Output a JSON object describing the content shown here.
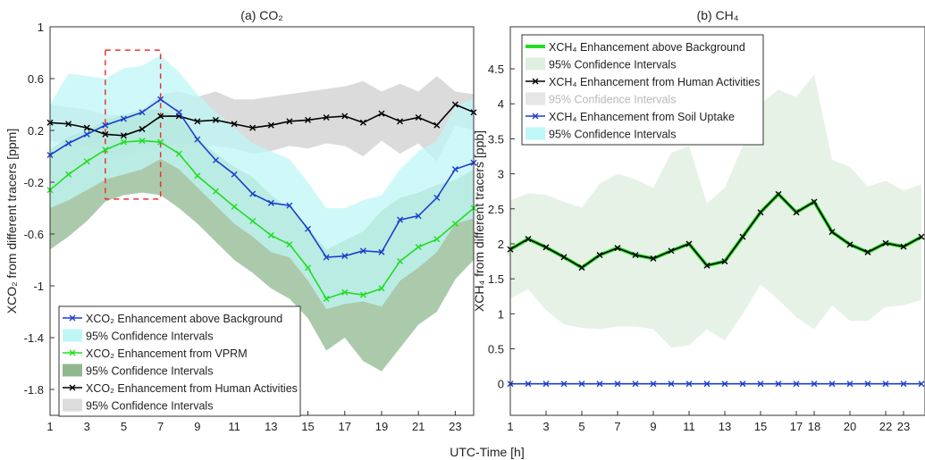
{
  "xlabel": "UTC-Time [h]",
  "chart_data": [
    {
      "type": "line",
      "title": "(a) CO₂",
      "ylabel": "XCO₂ from different tracers [ppm]",
      "xlim": [
        1,
        24
      ],
      "ylim": [
        -2.0,
        1.0
      ],
      "yticks": [
        1,
        0.6,
        0.2,
        -0.2,
        -0.6,
        -1,
        -1.4,
        -1.8
      ],
      "ytick_labels": [
        "1",
        "0.6",
        "0.2",
        "-0.2",
        "-0.6",
        "-1",
        "-1.4",
        "-1.8"
      ],
      "xticks": [
        1,
        3,
        5,
        7,
        9,
        11,
        13,
        15,
        17,
        19,
        21,
        23
      ],
      "xtick_labels": [
        "1",
        "3",
        "5",
        "7",
        "9",
        "11",
        "13",
        "15",
        "17",
        "19",
        "21",
        "23"
      ],
      "legend_position": "bottom-left",
      "highlight_box": {
        "x": [
          4,
          7
        ],
        "y": [
          -0.33,
          0.82
        ]
      },
      "x": [
        1,
        2,
        3,
        4,
        5,
        6,
        7,
        8,
        9,
        10,
        11,
        12,
        13,
        14,
        15,
        16,
        17,
        18,
        19,
        20,
        21,
        22,
        23,
        24
      ],
      "series": [
        {
          "name": "XCO₂ Enhancement from Human Activities",
          "color": "#000000",
          "ci_label": "95% Confidence Intervals",
          "ci_color": "#cfcfcf",
          "values": [
            0.26,
            0.25,
            0.22,
            0.17,
            0.16,
            0.21,
            0.31,
            0.31,
            0.27,
            0.28,
            0.25,
            0.22,
            0.24,
            0.27,
            0.28,
            0.3,
            0.31,
            0.26,
            0.33,
            0.27,
            0.3,
            0.24,
            0.4,
            0.34
          ],
          "ci_upper": [
            0.4,
            0.38,
            0.36,
            0.32,
            0.32,
            0.36,
            0.48,
            0.5,
            0.46,
            0.5,
            0.44,
            0.44,
            0.46,
            0.48,
            0.5,
            0.52,
            0.54,
            0.58,
            0.5,
            0.56,
            0.5,
            0.62,
            0.5,
            0.48
          ],
          "ci_lower": [
            0.12,
            0.1,
            0.08,
            0.02,
            0.0,
            0.06,
            0.1,
            0.1,
            0.08,
            0.08,
            0.06,
            0.02,
            0.04,
            0.08,
            0.06,
            0.1,
            0.08,
            0.0,
            0.12,
            0.02,
            0.1,
            -0.04,
            0.24,
            0.2
          ]
        },
        {
          "name": "XCO₂ Enhancement from VPRM",
          "color": "#22dd22",
          "ci_label": "95% Confidence Intervals",
          "ci_color": "#8fb88f",
          "values": [
            -0.26,
            -0.14,
            -0.04,
            0.05,
            0.11,
            0.12,
            0.11,
            0.02,
            -0.15,
            -0.27,
            -0.39,
            -0.5,
            -0.61,
            -0.68,
            -0.86,
            -1.1,
            -1.05,
            -1.07,
            -1.02,
            -0.81,
            -0.7,
            -0.64,
            -0.52,
            -0.4
          ],
          "ci_upper": [
            0.05,
            0.15,
            0.2,
            0.28,
            0.32,
            0.36,
            0.36,
            0.3,
            0.14,
            0.02,
            -0.08,
            -0.16,
            -0.3,
            -0.4,
            -0.55,
            -0.72,
            -0.65,
            -0.58,
            -0.42,
            -0.32,
            -0.28,
            -0.22,
            -0.18,
            -0.1
          ],
          "ci_lower": [
            -0.72,
            -0.62,
            -0.5,
            -0.35,
            -0.3,
            -0.28,
            -0.3,
            -0.4,
            -0.52,
            -0.66,
            -0.8,
            -0.9,
            -1.02,
            -1.1,
            -1.25,
            -1.5,
            -1.4,
            -1.58,
            -1.66,
            -1.48,
            -1.3,
            -1.2,
            -0.95,
            -0.8
          ]
        },
        {
          "name": "XCO₂ Enhancement above Background",
          "color": "#1a3fcc",
          "ci_label": "95% Confidence Intervals",
          "ci_color": "#bff7f7",
          "values": [
            0.01,
            0.1,
            0.17,
            0.24,
            0.29,
            0.34,
            0.44,
            0.34,
            0.13,
            -0.03,
            -0.14,
            -0.29,
            -0.36,
            -0.38,
            -0.56,
            -0.78,
            -0.77,
            -0.73,
            -0.74,
            -0.49,
            -0.46,
            -0.32,
            -0.1,
            -0.05
          ],
          "ci_upper": [
            0.4,
            0.64,
            0.62,
            0.6,
            0.68,
            0.7,
            0.78,
            0.65,
            0.48,
            0.34,
            0.22,
            0.1,
            0.04,
            -0.02,
            -0.2,
            -0.4,
            -0.4,
            -0.34,
            -0.3,
            -0.1,
            0.04,
            0.12,
            0.38,
            0.45
          ],
          "ci_lower": [
            -0.4,
            -0.34,
            -0.26,
            -0.18,
            -0.14,
            -0.1,
            -0.02,
            -0.1,
            -0.24,
            -0.38,
            -0.52,
            -0.62,
            -0.74,
            -0.78,
            -0.96,
            -1.18,
            -1.14,
            -1.12,
            -1.16,
            -0.96,
            -0.86,
            -0.74,
            -0.52,
            -0.48
          ]
        }
      ],
      "legend": [
        {
          "label": "XCO₂ Enhancement above Background",
          "kind": "line",
          "color": "#1a3fcc"
        },
        {
          "label": "95% Confidence Intervals",
          "kind": "patch",
          "color": "#bff7f7"
        },
        {
          "label": "XCO₂ Enhancement from VPRM",
          "kind": "line",
          "color": "#22dd22"
        },
        {
          "label": "95% Confidence Intervals",
          "kind": "patch",
          "color": "#8fb88f"
        },
        {
          "label": "XCO₂ Enhancement from Human Activities",
          "kind": "line",
          "color": "#000000"
        },
        {
          "label": "95% Confidence Intervals",
          "kind": "patch",
          "color": "#dcdcdc"
        }
      ]
    },
    {
      "type": "line",
      "title": "(b) CH₄",
      "ylabel": "XCH₄ from different tracers [ppb]",
      "xlim": [
        1,
        24.2
      ],
      "ylim": [
        -0.45,
        5.1
      ],
      "yticks": [
        0,
        0.5,
        1,
        1.5,
        2,
        2.5,
        3,
        3.5,
        4,
        4.5
      ],
      "ytick_labels": [
        "0",
        "0.5",
        "1",
        "1.5",
        "2",
        "2.5",
        "3",
        "3.5",
        "4",
        "4.5"
      ],
      "xticks": [
        1,
        3,
        5,
        7,
        9,
        11,
        13,
        15,
        17,
        18,
        20,
        22,
        23
      ],
      "xtick_labels": [
        "1",
        "3",
        "5",
        "7",
        "9",
        "11",
        "13",
        "15",
        "17",
        "18",
        "20",
        "22",
        "23"
      ],
      "legend_position": "top-left",
      "x": [
        1,
        2,
        3,
        4,
        5,
        6,
        7,
        8,
        9,
        10,
        11,
        12,
        13,
        14,
        15,
        16,
        17,
        18,
        19,
        20,
        21,
        22,
        23,
        24
      ],
      "series": [
        {
          "name": "XCH₄ Enhancement from Soil Uptake",
          "color": "#1a3fcc",
          "ci_label": "95% Confidence Intervals",
          "ci_color": "#bff7f7",
          "values": [
            0,
            0,
            0,
            0,
            0,
            0,
            0,
            0,
            0,
            0,
            0,
            0,
            0,
            0,
            0,
            0,
            0,
            0,
            0,
            0,
            0,
            0,
            0,
            0
          ],
          "ci_upper": [
            0.01,
            0.01,
            0.01,
            0.01,
            0.01,
            0.01,
            0.01,
            0.01,
            0.01,
            0.01,
            0.01,
            0.01,
            0.01,
            0.01,
            0.01,
            0.01,
            0.01,
            0.01,
            0.01,
            0.01,
            0.01,
            0.01,
            0.01,
            0.01
          ],
          "ci_lower": [
            -0.01,
            -0.01,
            -0.01,
            -0.01,
            -0.01,
            -0.01,
            -0.01,
            -0.01,
            -0.01,
            -0.01,
            -0.01,
            -0.01,
            -0.01,
            -0.01,
            -0.01,
            -0.01,
            -0.01,
            -0.01,
            -0.01,
            -0.01,
            -0.01,
            -0.01,
            -0.01,
            -0.01
          ]
        },
        {
          "name": "XCH₄ Enhancement above Background",
          "color": "#22dd22",
          "ci_label": "95% Confidence Intervals",
          "ci_color": "#dfeedf",
          "values": [
            1.92,
            2.07,
            1.95,
            1.81,
            1.66,
            1.84,
            1.94,
            1.84,
            1.79,
            1.9,
            2.0,
            1.69,
            1.75,
            2.1,
            2.45,
            2.71,
            2.45,
            2.6,
            2.17,
            1.99,
            1.88,
            2.01,
            1.96,
            2.1
          ],
          "ci_upper": [
            2.62,
            2.72,
            2.7,
            2.6,
            2.52,
            2.86,
            3.0,
            2.92,
            2.8,
            3.3,
            3.4,
            2.58,
            2.8,
            3.4,
            4.0,
            4.2,
            4.1,
            4.42,
            3.2,
            3.1,
            2.82,
            2.9,
            2.76,
            2.85
          ],
          "ci_lower": [
            1.22,
            1.35,
            1.05,
            0.85,
            0.8,
            0.78,
            0.82,
            0.82,
            0.78,
            0.52,
            0.55,
            0.78,
            0.62,
            1.0,
            1.42,
            1.2,
            0.95,
            0.78,
            1.12,
            0.9,
            0.9,
            1.1,
            1.12,
            1.2
          ]
        },
        {
          "name": "XCH₄ Enhancement from Human Activities",
          "color": "#000000",
          "ci_label": "95% Confidence Intervals",
          "ci_color": "#dcdcdc",
          "values": [
            1.92,
            2.07,
            1.95,
            1.81,
            1.66,
            1.84,
            1.94,
            1.84,
            1.79,
            1.9,
            2.0,
            1.69,
            1.75,
            2.1,
            2.45,
            2.71,
            2.45,
            2.6,
            2.17,
            1.99,
            1.88,
            2.01,
            1.96,
            2.1
          ]
        }
      ],
      "legend": [
        {
          "label": "XCH₄ Enhancement above Background",
          "kind": "thickline",
          "color": "#22dd22"
        },
        {
          "label": "95% Confidence Intervals",
          "kind": "patch",
          "color": "#dfeedf"
        },
        {
          "label": "XCH₄ Enhancement from Human Activities",
          "kind": "line",
          "color": "#000000"
        },
        {
          "label": "95% Confidence Intervals",
          "kind": "patch",
          "color": "#e6e6e6",
          "faded": true
        },
        {
          "label": "XCH₄ Enhancement from Soil Uptake",
          "kind": "line",
          "color": "#1a3fcc"
        },
        {
          "label": "95% Confidence Intervals",
          "kind": "patch",
          "color": "#bff7f7"
        }
      ]
    }
  ]
}
